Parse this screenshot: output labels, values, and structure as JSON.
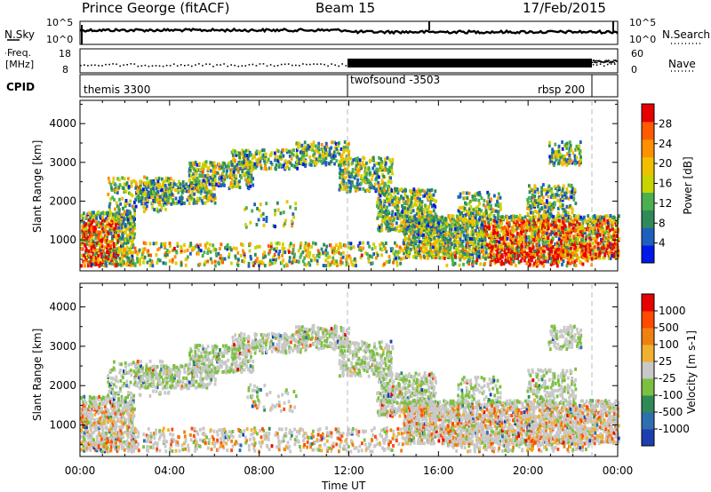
{
  "header": {
    "station": "Prince George (fitACF)",
    "beam": "Beam 15",
    "date": "17/Feb/2015"
  },
  "strip_panels": {
    "nsky": {
      "left_label": "N.Sky",
      "right_label": "N.Search",
      "left_ticks": [
        "10^5",
        "10^0"
      ],
      "right_ticks": [
        "10^5",
        "10^0"
      ]
    },
    "freq": {
      "left_label_1": "Freq.",
      "left_label_2": "[MHz]",
      "right_label": "Nave",
      "left_ticks": [
        "18",
        "8"
      ],
      "right_ticks": [
        "60",
        "0"
      ]
    },
    "cpid": {
      "label": "CPID",
      "segments": [
        "themis 3300",
        "twofsound -3503",
        "rbsp 200"
      ]
    }
  },
  "chart_data": [
    {
      "type": "heatmap",
      "name": "power",
      "ylabel": "Slant Range [km]",
      "y_ticks": [
        "1000",
        "2000",
        "3000",
        "4000"
      ],
      "ylim": [
        200,
        4600
      ],
      "colorbar_label": "Power [dB]",
      "colorbar_ticks": [
        "28",
        "24",
        "20",
        "16",
        "12",
        "8",
        "4"
      ],
      "colors": [
        "#0018e8",
        "#1f5fc0",
        "#2e8b57",
        "#4caf50",
        "#c8d400",
        "#f0c000",
        "#ff9000",
        "#ff5a00",
        "#e60000"
      ],
      "x_ticks": [
        "00:00",
        "04:00",
        "08:00",
        "12:00",
        "16:00",
        "20:00",
        "00:00"
      ]
    },
    {
      "type": "heatmap",
      "name": "velocity",
      "ylabel": "Slant Range [km]",
      "y_ticks": [
        "1000",
        "2000",
        "3000",
        "4000"
      ],
      "ylim": [
        200,
        4600
      ],
      "colorbar_label": "Velocity [m s-1]",
      "colorbar_ticks": [
        "1000",
        "500",
        "100",
        "25",
        "-25",
        "-100",
        "-500",
        "-1000"
      ],
      "colors": [
        "#1c3fb0",
        "#2e6fb0",
        "#2e8b57",
        "#7cc040",
        "#c8c8c8",
        "#f0b030",
        "#f08010",
        "#ff4a00",
        "#e60000"
      ],
      "x_ticks": [
        "00:00",
        "04:00",
        "08:00",
        "12:00",
        "16:00",
        "20:00",
        "00:00"
      ],
      "xlabel": "Time UT"
    }
  ]
}
